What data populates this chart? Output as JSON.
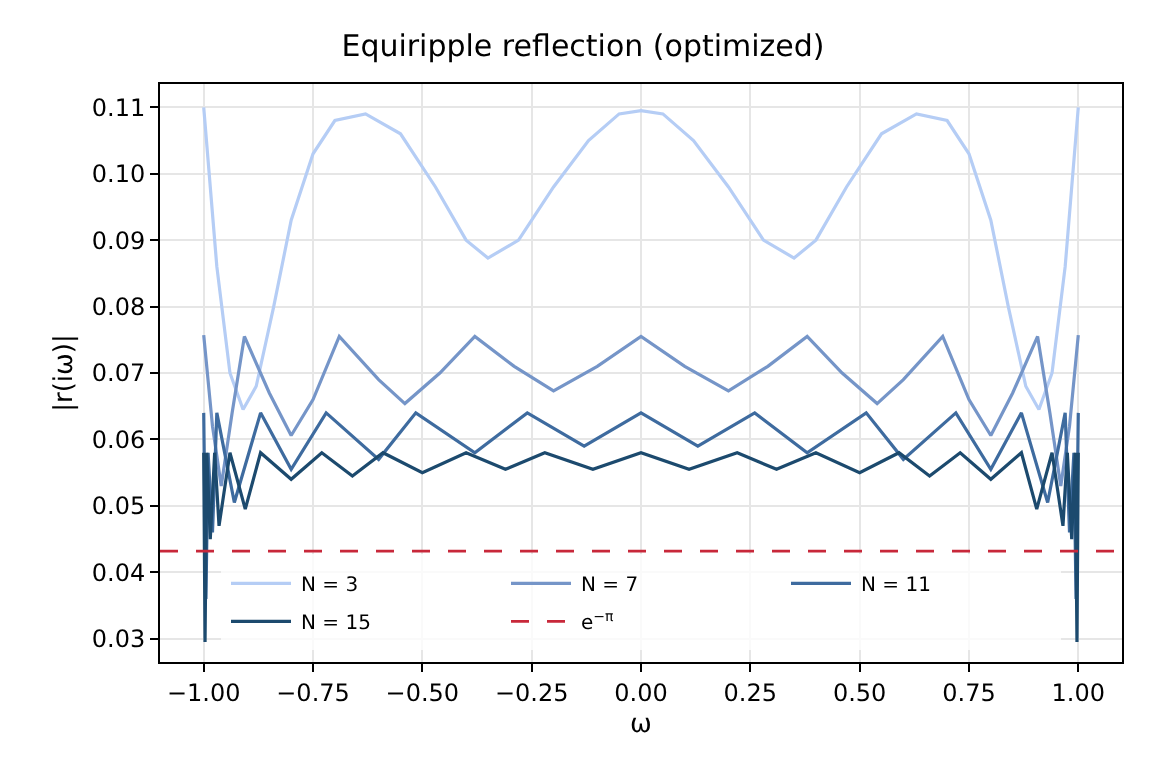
{
  "chart_data": {
    "type": "line",
    "title": "Equiripple reflection (optimized)",
    "xlabel": "ω",
    "ylabel": "|r(iω)|",
    "xlim": [
      -1.1,
      1.1
    ],
    "ylim": [
      0.0265,
      0.1135
    ],
    "xticks": [
      {
        "value": -1,
        "label": "−1.00"
      },
      {
        "value": -0.75,
        "label": "−0.75"
      },
      {
        "value": -0.5,
        "label": "−0.50"
      },
      {
        "value": -0.25,
        "label": "−0.25"
      },
      {
        "value": 0,
        "label": "0.00"
      },
      {
        "value": 0.25,
        "label": "0.25"
      },
      {
        "value": 0.5,
        "label": "0.50"
      },
      {
        "value": 0.75,
        "label": "0.75"
      },
      {
        "value": 1,
        "label": "1.00"
      }
    ],
    "yticks": [
      {
        "value": 0.03,
        "label": "0.03"
      },
      {
        "value": 0.04,
        "label": "0.04"
      },
      {
        "value": 0.05,
        "label": "0.05"
      },
      {
        "value": 0.06,
        "label": "0.06"
      },
      {
        "value": 0.07,
        "label": "0.07"
      },
      {
        "value": 0.08,
        "label": "0.08"
      },
      {
        "value": 0.09,
        "label": "0.09"
      },
      {
        "value": 0.1,
        "label": "0.10"
      },
      {
        "value": 0.11,
        "label": "0.11"
      }
    ],
    "grid": true,
    "legend": "bottom",
    "marker": "none",
    "line_style": "solid",
    "series": [
      {
        "name": "N = 3",
        "color": "#b5cdf5",
        "x": [
          -1,
          -0.97,
          -0.94,
          -0.91,
          -0.88,
          -0.84,
          -0.8,
          -0.75,
          -0.7,
          -0.63,
          -0.55,
          -0.47,
          -0.4,
          -0.35,
          -0.28,
          -0.2,
          -0.12,
          -0.05,
          0,
          0.05,
          0.12,
          0.2,
          0.28,
          0.35,
          0.4,
          0.47,
          0.55,
          0.63,
          0.7,
          0.75,
          0.8,
          0.84,
          0.88,
          0.91,
          0.94,
          0.97,
          1
        ],
        "values": [
          0.11,
          0.086,
          0.07,
          0.0645,
          0.068,
          0.08,
          0.093,
          0.103,
          0.108,
          0.109,
          0.106,
          0.098,
          0.09,
          0.0873,
          0.09,
          0.098,
          0.105,
          0.109,
          0.1095,
          0.109,
          0.105,
          0.098,
          0.09,
          0.0873,
          0.09,
          0.098,
          0.106,
          0.109,
          0.108,
          0.103,
          0.093,
          0.08,
          0.068,
          0.0645,
          0.07,
          0.086,
          0.11
        ]
      },
      {
        "name": "N = 7",
        "color": "#7595c8",
        "x": [
          -1,
          -0.98,
          -0.96,
          -0.935,
          -0.907,
          -0.85,
          -0.8,
          -0.75,
          -0.69,
          -0.6,
          -0.54,
          -0.46,
          -0.38,
          -0.29,
          -0.2,
          -0.1,
          0,
          0.1,
          0.2,
          0.29,
          0.38,
          0.46,
          0.54,
          0.6,
          0.69,
          0.75,
          0.8,
          0.85,
          0.907,
          0.935,
          0.96,
          0.98,
          1
        ],
        "values": [
          0.0757,
          0.062,
          0.053,
          0.064,
          0.0755,
          0.067,
          0.0606,
          0.066,
          0.0755,
          0.069,
          0.0654,
          0.07,
          0.0755,
          0.071,
          0.0673,
          0.071,
          0.0755,
          0.071,
          0.0673,
          0.071,
          0.0755,
          0.07,
          0.0654,
          0.069,
          0.0755,
          0.066,
          0.0606,
          0.067,
          0.0755,
          0.064,
          0.053,
          0.062,
          0.0757
        ]
      },
      {
        "name": "N = 11",
        "color": "#3e6b9f",
        "x": [
          -1,
          -0.995,
          -0.99,
          -0.98,
          -0.97,
          -0.93,
          -0.87,
          -0.8,
          -0.72,
          -0.6,
          -0.515,
          -0.38,
          -0.26,
          -0.13,
          0,
          0.13,
          0.26,
          0.38,
          0.515,
          0.6,
          0.72,
          0.8,
          0.87,
          0.93,
          0.97,
          0.98,
          0.99,
          0.995,
          1
        ],
        "values": [
          0.064,
          0.036,
          0.058,
          0.046,
          0.064,
          0.0505,
          0.064,
          0.0555,
          0.064,
          0.057,
          0.064,
          0.058,
          0.064,
          0.059,
          0.064,
          0.059,
          0.064,
          0.058,
          0.064,
          0.057,
          0.064,
          0.0555,
          0.064,
          0.0505,
          0.064,
          0.046,
          0.058,
          0.036,
          0.064
        ]
      },
      {
        "name": "N = 15",
        "color": "#1c4a6e",
        "x": [
          -1,
          -0.997,
          -0.993,
          -0.985,
          -0.975,
          -0.965,
          -0.94,
          -0.905,
          -0.87,
          -0.8,
          -0.73,
          -0.66,
          -0.59,
          -0.5,
          -0.4,
          -0.31,
          -0.22,
          -0.11,
          0,
          0.11,
          0.22,
          0.31,
          0.4,
          0.5,
          0.59,
          0.66,
          0.73,
          0.8,
          0.87,
          0.905,
          0.94,
          0.965,
          0.975,
          0.985,
          0.993,
          0.997,
          1
        ],
        "values": [
          0.058,
          0.0295,
          0.058,
          0.045,
          0.058,
          0.047,
          0.058,
          0.0495,
          0.058,
          0.054,
          0.058,
          0.0545,
          0.058,
          0.055,
          0.058,
          0.0555,
          0.058,
          0.0555,
          0.058,
          0.0555,
          0.058,
          0.0555,
          0.058,
          0.055,
          0.058,
          0.0545,
          0.058,
          0.054,
          0.058,
          0.0495,
          0.058,
          0.047,
          0.058,
          0.045,
          0.058,
          0.0295,
          0.058
        ]
      }
    ],
    "ref_lines": [
      {
        "axis": "y",
        "value": 0.0432,
        "label": "e$^{−π}$",
        "color": "#c8283a",
        "line_style": "dashed"
      }
    ]
  }
}
